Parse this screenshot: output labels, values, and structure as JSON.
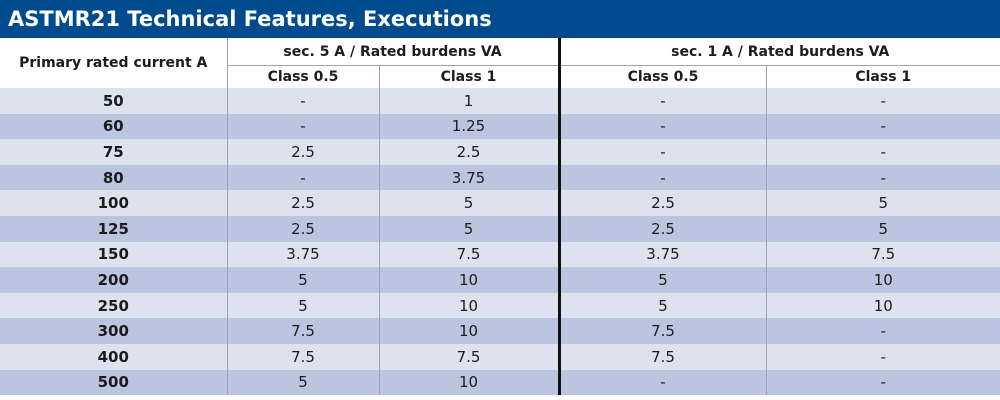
{
  "title": "ASTMR21 Technical Features, Executions",
  "headers": {
    "primary": "Primary rated current A",
    "group_sec5": "sec. 5 A / Rated burdens VA",
    "group_sec1": "sec. 1 A / Rated burdens VA",
    "sec5_class05": "Class 0.5",
    "sec5_class1": "Class 1",
    "sec1_class05": "Class 0.5",
    "sec1_class1": "Class 1"
  },
  "rows": [
    [
      "50",
      "-",
      "1",
      "-",
      "-"
    ],
    [
      "60",
      "-",
      "1.25",
      "-",
      "-"
    ],
    [
      "75",
      "2.5",
      "2.5",
      "-",
      "-"
    ],
    [
      "80",
      "-",
      "3.75",
      "-",
      "-"
    ],
    [
      "100",
      "2.5",
      "5",
      "2.5",
      "5"
    ],
    [
      "125",
      "2.5",
      "5",
      "2.5",
      "5"
    ],
    [
      "150",
      "3.75",
      "7.5",
      "3.75",
      "7.5"
    ],
    [
      "200",
      "5",
      "10",
      "5",
      "10"
    ],
    [
      "250",
      "5",
      "10",
      "5",
      "10"
    ],
    [
      "300",
      "7.5",
      "10",
      "7.5",
      "-"
    ],
    [
      "400",
      "7.5",
      "7.5",
      "7.5",
      "-"
    ],
    [
      "500",
      "5",
      "10",
      "-",
      "-"
    ]
  ],
  "colors": {
    "title_bg": "#004b8d",
    "row_light": "#dde2ef",
    "row_dark": "#bbc5df"
  }
}
